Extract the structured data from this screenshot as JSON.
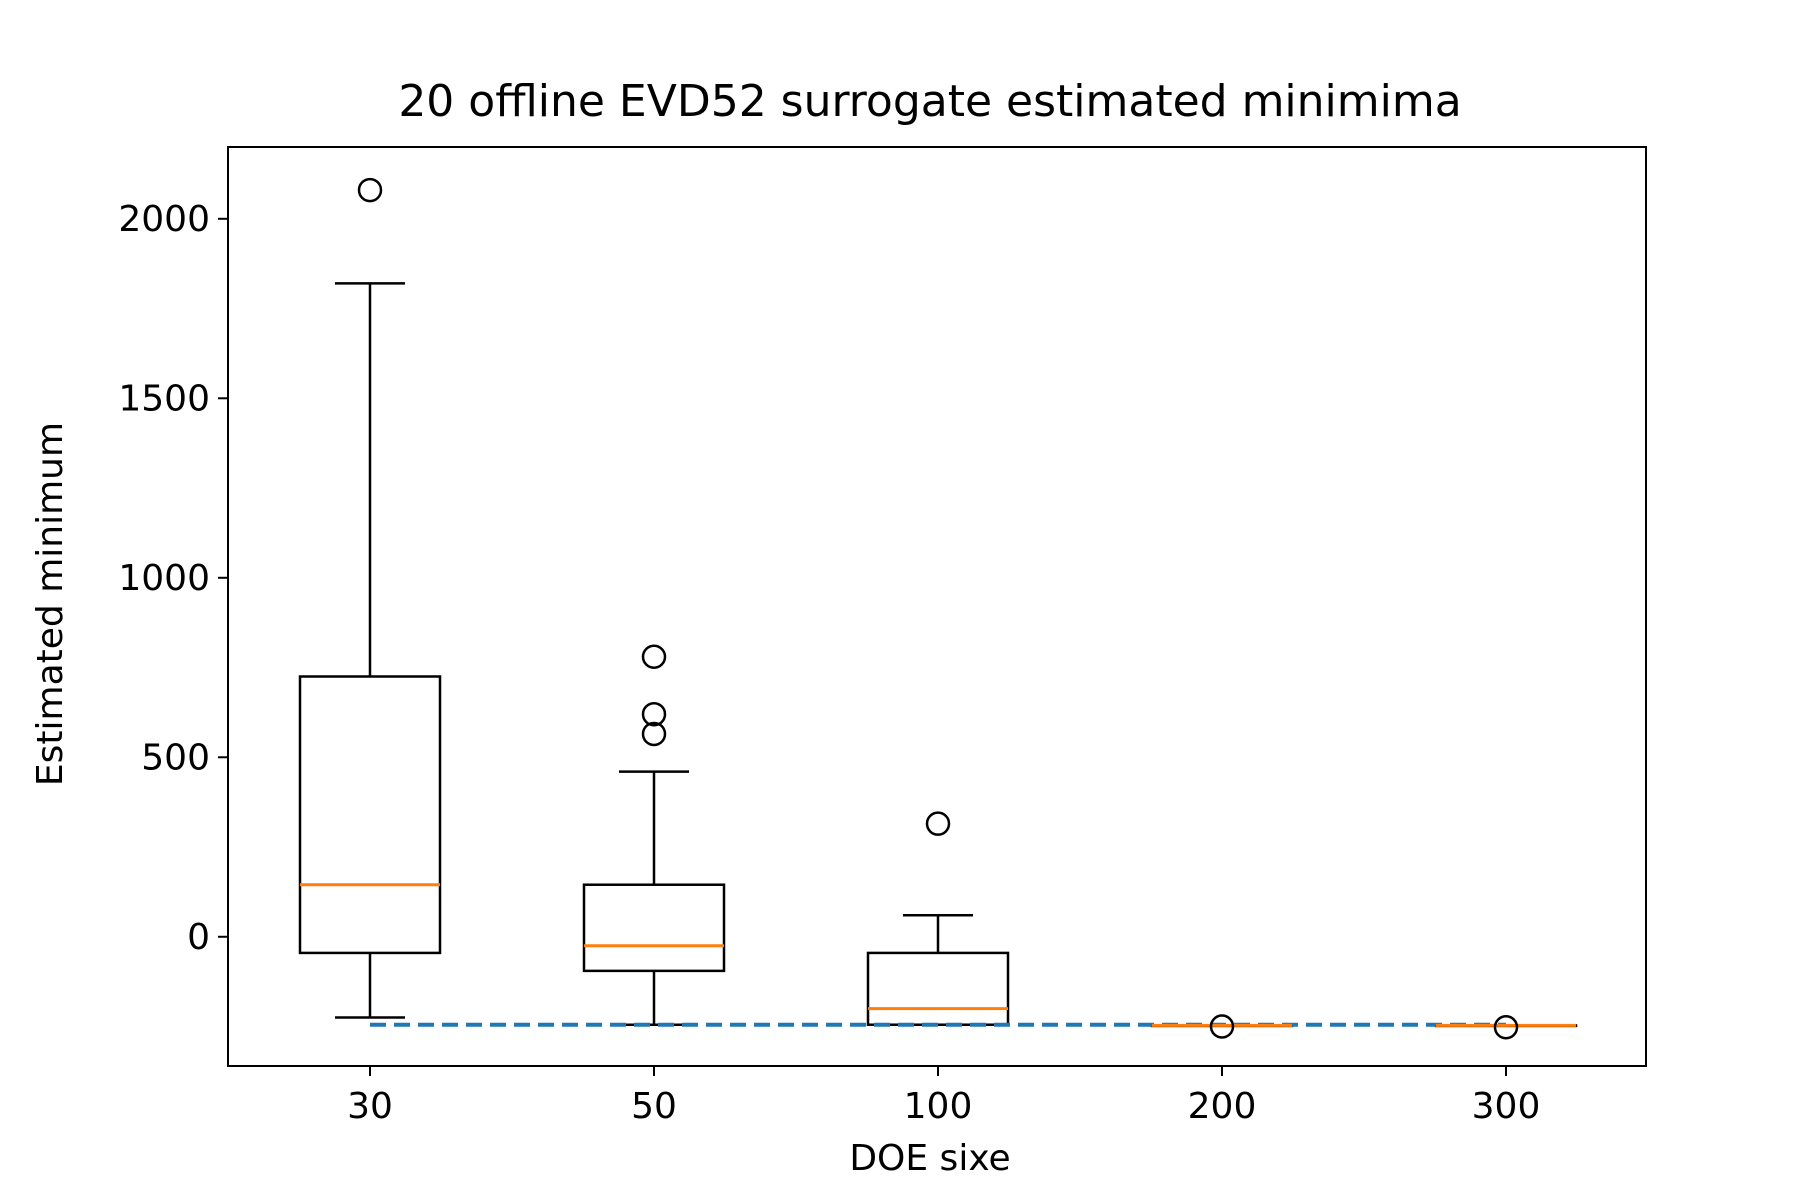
{
  "chart_data": {
    "type": "box",
    "title": "20 offline EVD52 surrogate estimated minimima",
    "xlabel": "DOE sixe",
    "ylabel": "Estimated minimum",
    "categories": [
      "30",
      "50",
      "100",
      "200",
      "300"
    ],
    "ylim": [
      -360,
      2200
    ],
    "yticks": [
      0,
      500,
      1000,
      1500,
      2000
    ],
    "grid": false,
    "reference_line": {
      "y": -245,
      "style": "dashed",
      "color": "#1f77b4",
      "from_category": "30",
      "to_category": "300"
    },
    "boxes": [
      {
        "category": "30",
        "whisker_low": -225,
        "q1": -45,
        "median": 145,
        "q3": 725,
        "whisker_high": 1820,
        "outliers": [
          2080
        ]
      },
      {
        "category": "50",
        "whisker_low": -245,
        "q1": -95,
        "median": -25,
        "q3": 145,
        "whisker_high": 460,
        "outliers": [
          780,
          620,
          565
        ]
      },
      {
        "category": "100",
        "whisker_low": -245,
        "q1": -245,
        "median": -200,
        "q3": -45,
        "whisker_high": 60,
        "outliers": [
          315
        ]
      },
      {
        "category": "200",
        "whisker_low": -247,
        "q1": -247,
        "median": -247,
        "q3": -247,
        "whisker_high": -247,
        "outliers": [
          -250
        ]
      },
      {
        "category": "300",
        "whisker_low": -247,
        "q1": -247,
        "median": -247,
        "q3": -247,
        "whisker_high": -247,
        "outliers": [
          -252
        ]
      }
    ],
    "colors": {
      "box": "#000000",
      "median": "#ff7f0e",
      "reference": "#1f77b4"
    }
  }
}
